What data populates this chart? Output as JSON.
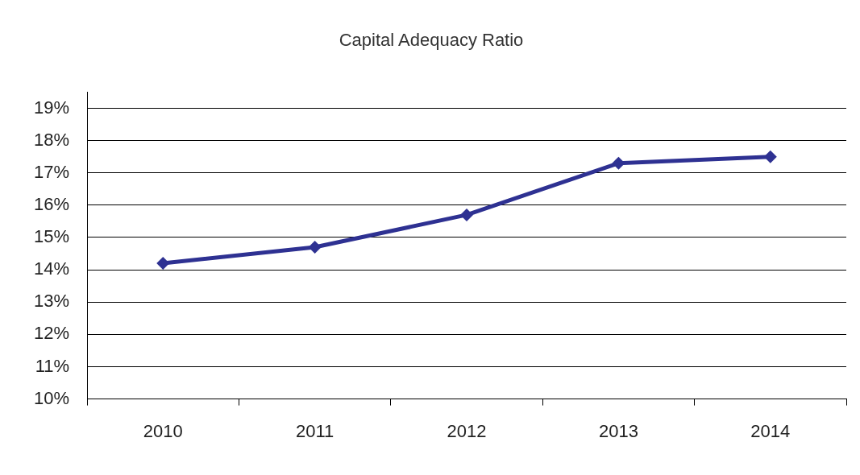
{
  "chart_data": {
    "type": "line",
    "title": "Capital Adequacy Ratio",
    "categories": [
      "2010",
      "2011",
      "2012",
      "2013",
      "2014"
    ],
    "series": [
      {
        "color": "#2e3192",
        "values": [
          14.2,
          14.7,
          15.7,
          17.3,
          17.5
        ]
      }
    ],
    "ylim": [
      10,
      19.5
    ],
    "yticks": [
      {
        "value": 10,
        "label": "10%"
      },
      {
        "value": 11,
        "label": "11%"
      },
      {
        "value": 12,
        "label": "12%"
      },
      {
        "value": 13,
        "label": "13%"
      },
      {
        "value": 14,
        "label": "14%"
      },
      {
        "value": 15,
        "label": "15%"
      },
      {
        "value": 16,
        "label": "16%"
      },
      {
        "value": 17,
        "label": "17%"
      },
      {
        "value": 18,
        "label": "18%"
      },
      {
        "value": 19,
        "label": "19%"
      }
    ],
    "grid": "y",
    "legend": false,
    "marker": "diamond",
    "line_style": "solid"
  }
}
